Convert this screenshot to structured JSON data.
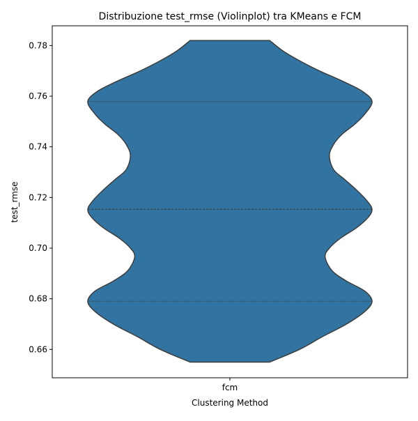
{
  "chart_data": {
    "type": "violin",
    "title": "Distribuzione test_rmse (Violinplot) tra KMeans e FCM",
    "xlabel": "Clustering Method",
    "ylabel": "test_rmse",
    "categories": [
      "fcm"
    ],
    "ylim": [
      0.6488,
      0.7878
    ],
    "yticks": [
      0.66,
      0.68,
      0.7,
      0.72,
      0.74,
      0.76,
      0.78
    ],
    "ytick_labels": [
      "0.66",
      "0.68",
      "0.70",
      "0.72",
      "0.74",
      "0.76",
      "0.78"
    ],
    "series": [
      {
        "category": "fcm",
        "color": "#3274a1",
        "edge_color": "#3d3d3d",
        "data_range": [
          0.655,
          0.782
        ],
        "quartiles": {
          "q1": 0.679,
          "median": 0.7153,
          "q3": 0.7579
        },
        "density_profile": [
          [
            0.655,
            0.28
          ],
          [
            0.66,
            0.49
          ],
          [
            0.665,
            0.65
          ],
          [
            0.67,
            0.82
          ],
          [
            0.675,
            0.95
          ],
          [
            0.679,
            1.0
          ],
          [
            0.683,
            0.95
          ],
          [
            0.687,
            0.82
          ],
          [
            0.691,
            0.72
          ],
          [
            0.6965,
            0.67
          ],
          [
            0.7,
            0.7
          ],
          [
            0.704,
            0.78
          ],
          [
            0.708,
            0.89
          ],
          [
            0.712,
            0.97
          ],
          [
            0.7153,
            1.0
          ],
          [
            0.719,
            0.96
          ],
          [
            0.723,
            0.89
          ],
          [
            0.727,
            0.81
          ],
          [
            0.731,
            0.73
          ],
          [
            0.7365,
            0.7
          ],
          [
            0.741,
            0.73
          ],
          [
            0.745,
            0.79
          ],
          [
            0.749,
            0.88
          ],
          [
            0.753,
            0.95
          ],
          [
            0.7579,
            1.0
          ],
          [
            0.762,
            0.93
          ],
          [
            0.766,
            0.79
          ],
          [
            0.77,
            0.63
          ],
          [
            0.774,
            0.49
          ],
          [
            0.778,
            0.37
          ],
          [
            0.782,
            0.28
          ]
        ]
      }
    ]
  }
}
